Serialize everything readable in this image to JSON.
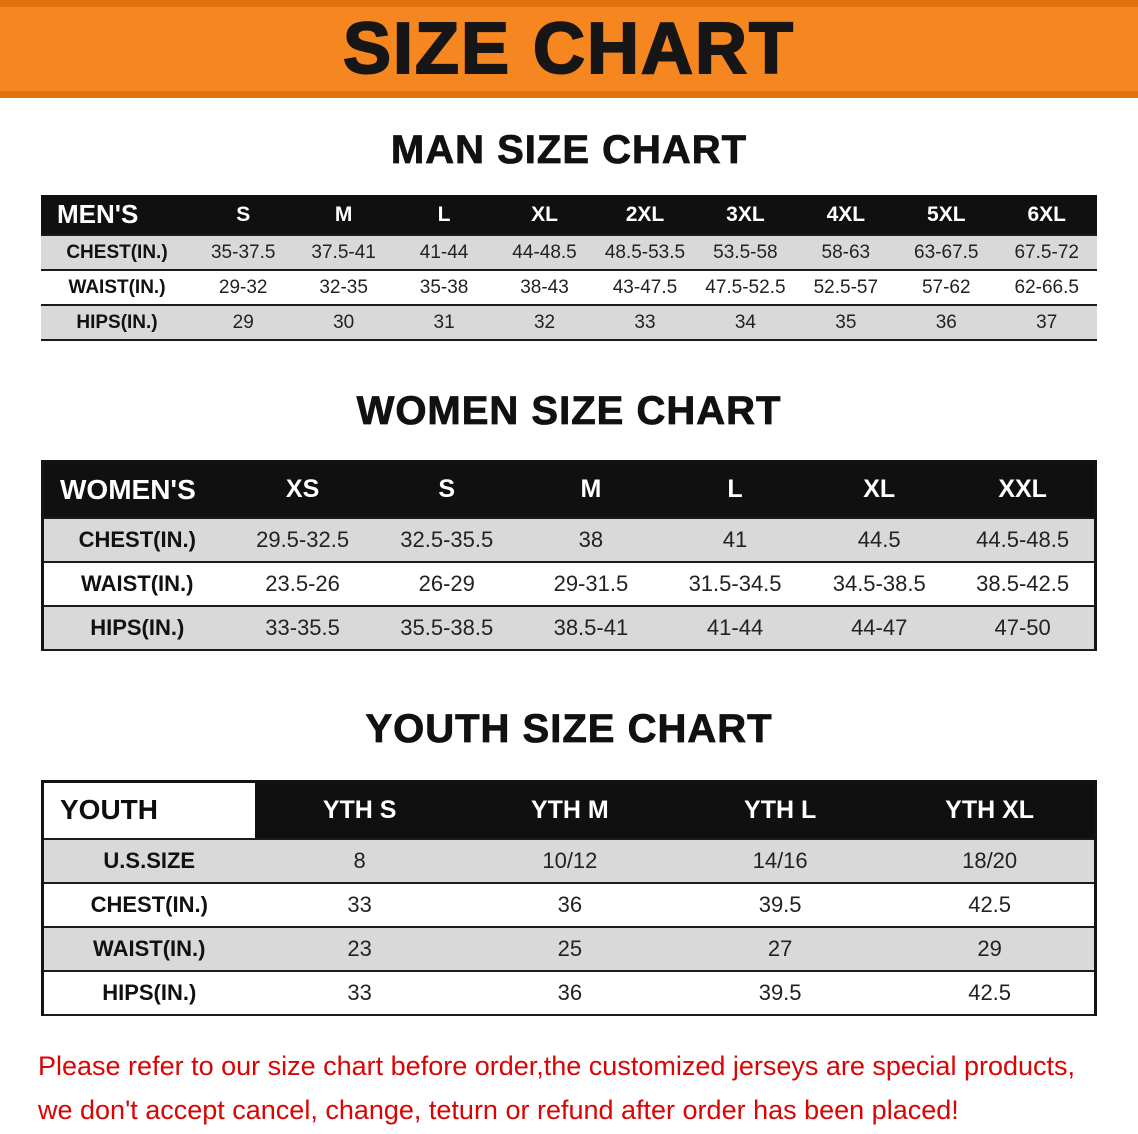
{
  "banner": {
    "title": "SIZE CHART",
    "bg_color": "#F6861F",
    "edge_color": "#E0710F"
  },
  "colors": {
    "table_header_bg": "#101010",
    "row_gray": "#D9D9D9",
    "note_red": "#DA0404"
  },
  "men": {
    "heading": "MAN SIZE CHART",
    "header": [
      "MEN'S",
      "S",
      "M",
      "L",
      "XL",
      "2XL",
      "3XL",
      "4XL",
      "5XL",
      "6XL"
    ],
    "rows": [
      {
        "label": "CHEST(IN.)",
        "values": [
          "35-37.5",
          "37.5-41",
          "41-44",
          "44-48.5",
          "48.5-53.5",
          "53.5-58",
          "58-63",
          "63-67.5",
          "67.5-72"
        ]
      },
      {
        "label": "WAIST(IN.)",
        "values": [
          "29-32",
          "32-35",
          "35-38",
          "38-43",
          "43-47.5",
          "47.5-52.5",
          "52.5-57",
          "57-62",
          "62-66.5"
        ]
      },
      {
        "label": "HIPS(IN.)",
        "values": [
          "29",
          "30",
          "31",
          "32",
          "33",
          "34",
          "35",
          "36",
          "37"
        ]
      }
    ]
  },
  "women": {
    "heading": "WOMEN SIZE CHART",
    "header": [
      "WOMEN'S",
      "XS",
      "S",
      "M",
      "L",
      "XL",
      "XXL"
    ],
    "rows": [
      {
        "label": "CHEST(IN.)",
        "values": [
          "29.5-32.5",
          "32.5-35.5",
          "38",
          "41",
          "44.5",
          "44.5-48.5"
        ]
      },
      {
        "label": "WAIST(IN.)",
        "values": [
          "23.5-26",
          "26-29",
          "29-31.5",
          "31.5-34.5",
          "34.5-38.5",
          "38.5-42.5"
        ]
      },
      {
        "label": "HIPS(IN.)",
        "values": [
          "33-35.5",
          "35.5-38.5",
          "38.5-41",
          "41-44",
          "44-47",
          "47-50"
        ]
      }
    ]
  },
  "youth": {
    "heading": "YOUTH SIZE CHART",
    "header": [
      "YOUTH",
      "YTH S",
      "YTH M",
      "YTH L",
      "YTH XL"
    ],
    "rows": [
      {
        "label": "U.S.SIZE",
        "values": [
          "8",
          "10/12",
          "14/16",
          "18/20"
        ]
      },
      {
        "label": "CHEST(IN.)",
        "values": [
          "33",
          "36",
          "39.5",
          "42.5"
        ]
      },
      {
        "label": "WAIST(IN.)",
        "values": [
          "23",
          "25",
          "27",
          "29"
        ]
      },
      {
        "label": "HIPS(IN.)",
        "values": [
          "33",
          "36",
          "39.5",
          "42.5"
        ]
      }
    ]
  },
  "footnote": {
    "line1": "Please refer to our size chart before order,the customized jerseys are special products,",
    "line2": "we don't accept cancel, change, teturn or refund after order has been placed!"
  }
}
